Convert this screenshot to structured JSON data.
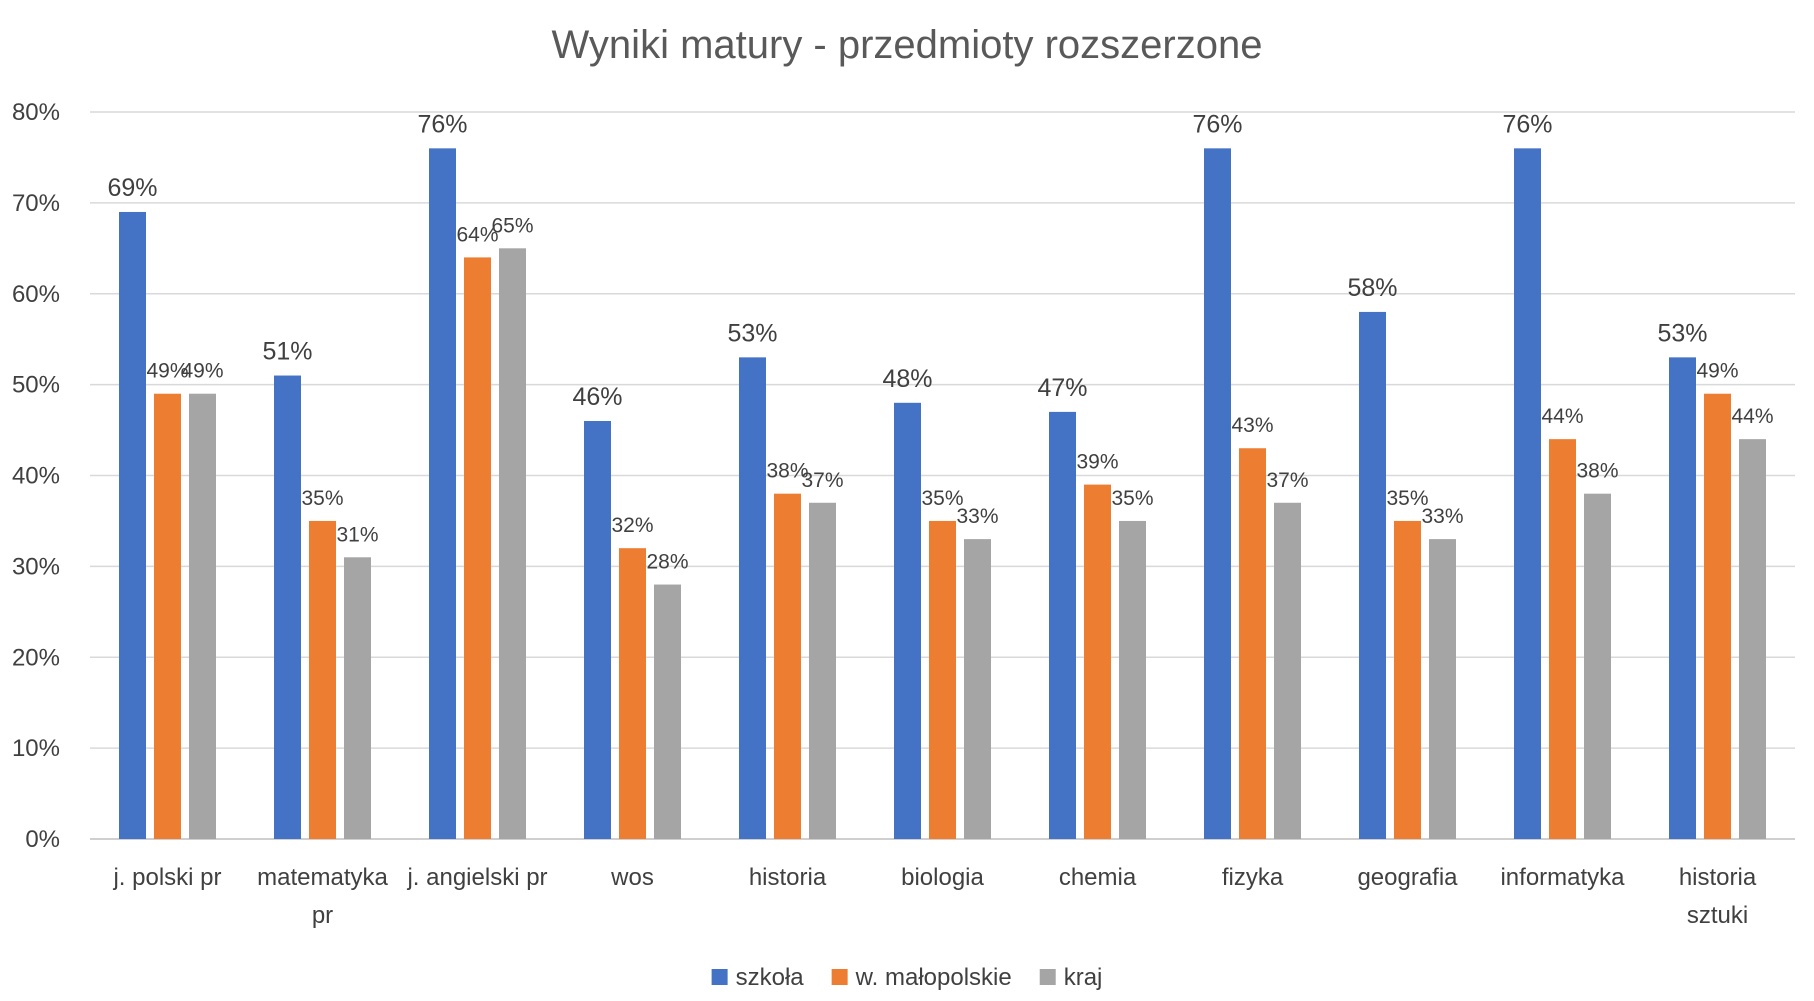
{
  "chart_data": {
    "type": "bar",
    "title": "Wyniki matury - przedmioty rozszerzone",
    "xlabel": "",
    "ylabel": "",
    "ylim": [
      0,
      80
    ],
    "yticks": [
      "0%",
      "10%",
      "20%",
      "30%",
      "40%",
      "50%",
      "60%",
      "70%",
      "80%"
    ],
    "grid": true,
    "legend_position": "bottom",
    "categories": [
      [
        "j. polski pr"
      ],
      [
        "matematyka",
        "pr"
      ],
      [
        "j. angielski pr"
      ],
      [
        "wos"
      ],
      [
        "historia"
      ],
      [
        "biologia"
      ],
      [
        "chemia"
      ],
      [
        "fizyka"
      ],
      [
        "geografia"
      ],
      [
        "informatyka"
      ],
      [
        "historia",
        "sztuki"
      ]
    ],
    "series": [
      {
        "name": "szkoła",
        "color": "#4472c4",
        "values": [
          69,
          51,
          76,
          46,
          53,
          48,
          47,
          76,
          58,
          76,
          53
        ],
        "labels": [
          "69%",
          "51%",
          "76%",
          "46%",
          "53%",
          "48%",
          "47%",
          "76%",
          "58%",
          "76%",
          "53%"
        ]
      },
      {
        "name": "w. małopolskie",
        "color": "#ed7d31",
        "values": [
          49,
          35,
          64,
          32,
          38,
          35,
          39,
          43,
          35,
          44,
          49
        ],
        "labels": [
          "49%",
          "35%",
          "64%",
          "32%",
          "38%",
          "35%",
          "39%",
          "43%",
          "35%",
          "44%",
          "49%"
        ]
      },
      {
        "name": "kraj",
        "color": "#a5a5a5",
        "values": [
          49,
          31,
          65,
          28,
          37,
          33,
          35,
          37,
          33,
          38,
          44
        ],
        "labels": [
          "49%",
          "31%",
          "65%",
          "28%",
          "37%",
          "33%",
          "35%",
          "37%",
          "33%",
          "38%",
          "44%"
        ]
      }
    ]
  }
}
